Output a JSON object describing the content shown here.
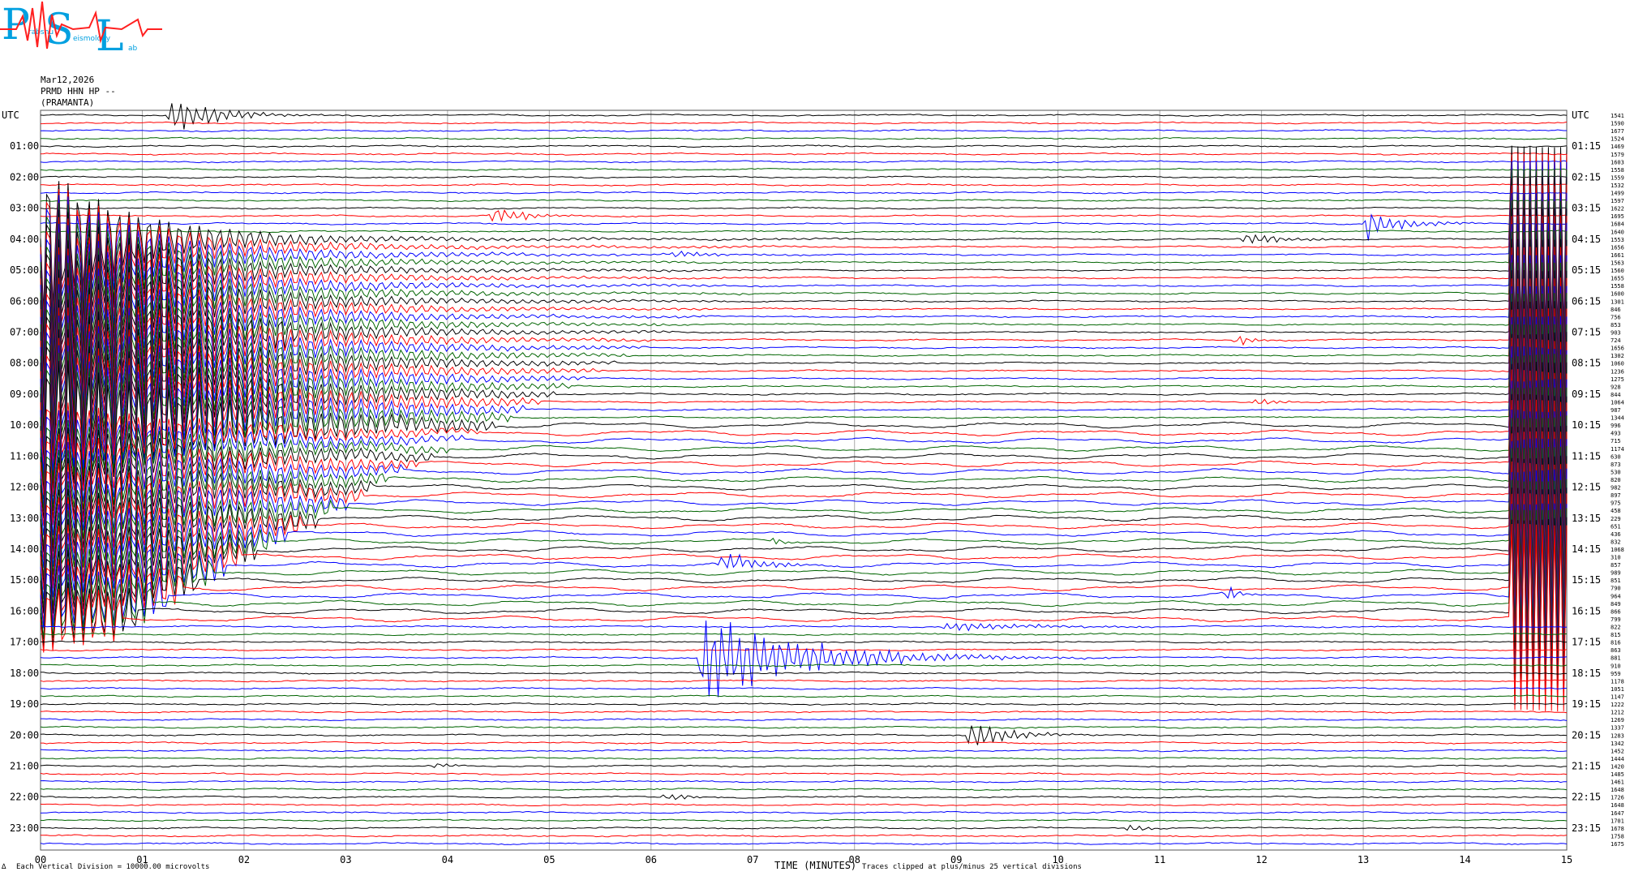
{
  "logo": {
    "letters": [
      "P",
      "S",
      "L"
    ],
    "small_words": [
      "rabshu",
      "eismology",
      "ab"
    ]
  },
  "header": {
    "date": "Mar12,2026",
    "station": "PRMD HHN HP --",
    "location": "(PRAMANTA)"
  },
  "footer": {
    "left_note": "Each Vertical Division = 10000.00 microvolts",
    "axis_title": "TIME (MINUTES)",
    "clip_note": "Traces clipped at plus/minus 25 vertical divisions",
    "corner_mark": "∆"
  },
  "colors": {
    "traces": [
      "#000000",
      "#ff0000",
      "#0000ff",
      "#006400"
    ],
    "grid": "#aaaaaa",
    "logo_blue": "#00a0e0",
    "logo_red": "#ff2020"
  },
  "chart_data": {
    "type": "line",
    "title": "",
    "xlabel": "TIME (MINUTES)",
    "ylabel": "",
    "x_ticks": [
      "00",
      "01",
      "02",
      "03",
      "04",
      "05",
      "06",
      "07",
      "08",
      "09",
      "10",
      "11",
      "12",
      "13",
      "14",
      "15"
    ],
    "xlim": [
      0,
      15
    ],
    "left_time_labels": [
      "UTC",
      "01:00",
      "02:00",
      "03:00",
      "04:00",
      "05:00",
      "06:00",
      "07:00",
      "08:00",
      "09:00",
      "10:00",
      "11:00",
      "12:00",
      "13:00",
      "14:00",
      "15:00",
      "16:00",
      "17:00",
      "18:00",
      "19:00",
      "20:00",
      "21:00",
      "22:00",
      "23:00"
    ],
    "right_time_labels": [
      "UTC",
      "01:15",
      "02:15",
      "03:15",
      "04:15",
      "05:15",
      "06:15",
      "07:15",
      "08:15",
      "09:15",
      "10:15",
      "11:15",
      "12:15",
      "13:15",
      "14:15",
      "15:15",
      "16:15",
      "17:15",
      "18:15",
      "19:15",
      "20:15",
      "21:15",
      "22:15",
      "23:15"
    ],
    "trace_levels": [
      "1541",
      "1590",
      "1677",
      "1524",
      "1469",
      "1579",
      "1603",
      "1558",
      "1559",
      "1532",
      "1499",
      "1597",
      "1622",
      "1695",
      "1684",
      "1640",
      "1553",
      "1656",
      "1661",
      "1563",
      "1560",
      "1655",
      "1558",
      "1600",
      "1301",
      "846",
      "756",
      "853",
      "903",
      "724",
      "1656",
      "1302",
      "1060",
      "1236",
      "1275",
      "928",
      "844",
      "1064",
      "987",
      "1344",
      "996",
      "493",
      "715",
      "1174",
      "630",
      "873",
      "530",
      "820",
      "982",
      "897",
      "975",
      "458",
      "229",
      "651",
      "436",
      "832",
      "1068",
      "310",
      "857",
      "989",
      "851",
      "790",
      "964",
      "849",
      "866",
      "799",
      "822",
      "815",
      "816",
      "863",
      "881",
      "910",
      "959",
      "1178",
      "1051",
      "1147",
      "1222",
      "1212",
      "1269",
      "1337",
      "1283",
      "1342",
      "1452",
      "1444",
      "1420",
      "1485",
      "1461",
      "1648",
      "1726",
      "1648",
      "1647",
      "1701",
      "1678",
      "1758",
      "1675"
    ],
    "events": [
      {
        "trace": 0,
        "minute": 1.3,
        "amp": 3.0,
        "dur": 0.6
      },
      {
        "trace": 18,
        "minute": 6.25,
        "amp": 0.6,
        "dur": 0.4
      },
      {
        "trace": 13,
        "minute": 4.45,
        "amp": 1.3,
        "dur": 0.5
      },
      {
        "trace": 14,
        "minute": 13.05,
        "amp": 1.8,
        "dur": 0.5
      },
      {
        "trace": 16,
        "minute": 11.85,
        "amp": 0.9,
        "dur": 0.5
      },
      {
        "trace": 28,
        "minute": 2.3,
        "amp": 1.0,
        "dur": 0.4
      },
      {
        "trace": 29,
        "minute": 11.75,
        "amp": 0.7,
        "dur": 0.3
      },
      {
        "trace": 37,
        "minute": 11.95,
        "amp": 0.5,
        "dur": 0.4
      },
      {
        "trace": 58,
        "minute": 6.7,
        "amp": 1.6,
        "dur": 0.5
      },
      {
        "trace": 55,
        "minute": 7.2,
        "amp": 0.5,
        "dur": 0.2
      },
      {
        "trace": 62,
        "minute": 11.65,
        "amp": 1.2,
        "dur": 0.2
      },
      {
        "trace": 70,
        "minute": 6.5,
        "amp": 6.0,
        "dur": 1.5
      },
      {
        "trace": 66,
        "minute": 8.9,
        "amp": 0.6,
        "dur": 1.2
      },
      {
        "trace": 80,
        "minute": 9.15,
        "amp": 2.2,
        "dur": 0.5
      },
      {
        "trace": 88,
        "minute": 6.15,
        "amp": 0.6,
        "dur": 0.3
      },
      {
        "trace": 92,
        "minute": 10.7,
        "amp": 0.6,
        "dur": 0.3
      },
      {
        "trace": 84,
        "minute": 3.9,
        "amp": 0.4,
        "dur": 0.2
      }
    ],
    "big_quake": {
      "start_trace": 16,
      "end_trace": 65,
      "minute_start": 0.0,
      "decay_to_minute": 8.0,
      "color": "#ff0000"
    },
    "clipped_block": {
      "start_trace": 16,
      "end_trace": 65,
      "minute_start": 14.45,
      "minute_end": 15.0
    }
  }
}
